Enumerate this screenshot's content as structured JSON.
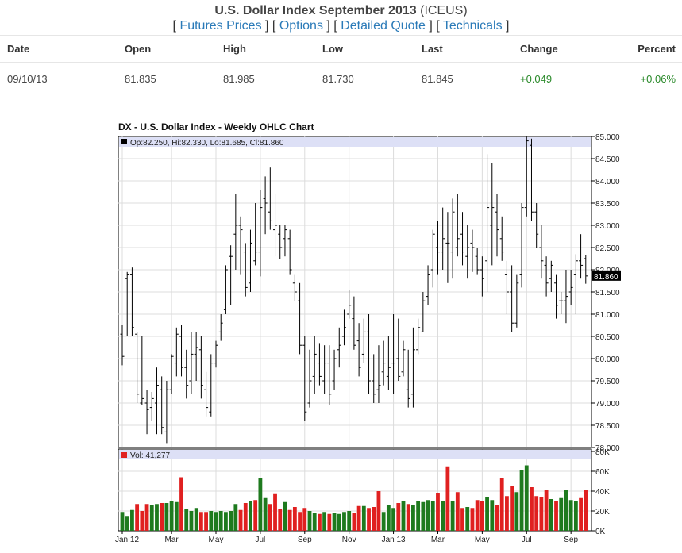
{
  "header": {
    "title": "U.S. Dollar Index September 2013",
    "symbol": "(ICEUS)",
    "links": [
      "Futures Prices",
      "Options",
      "Detailed Quote",
      "Technicals"
    ]
  },
  "quote": {
    "columns": [
      "Date",
      "Open",
      "High",
      "Low",
      "Last",
      "Change",
      "Percent"
    ],
    "row": {
      "date": "09/10/13",
      "open": "81.835",
      "high": "81.985",
      "low": "81.730",
      "last": "81.845",
      "change": "+0.049",
      "percent": "+0.06%"
    }
  },
  "colors": {
    "link": "#2a7ab8",
    "positive": "#2a8a2a",
    "vol_up": "#1e7a1e",
    "vol_down": "#e02020",
    "legend_band": "#dde0f6"
  },
  "chart_data": {
    "type": "ohlc",
    "title": "DX - U.S. Dollar Index - Weekly OHLC Chart",
    "legend": "Op:82.250, Hi:82.330, Lo:81.685, Cl:81.860",
    "last_label": "81.860",
    "ylim": [
      78.0,
      85.0
    ],
    "y_ticks": [
      "85.000",
      "84.500",
      "84.000",
      "83.500",
      "83.000",
      "82.500",
      "82.000",
      "81.500",
      "81.000",
      "80.500",
      "80.000",
      "79.500",
      "79.000",
      "78.500",
      "78.000"
    ],
    "x_ticks": [
      {
        "label": "Jan 12",
        "index": 0
      },
      {
        "label": "Mar",
        "index": 10
      },
      {
        "label": "May",
        "index": 19
      },
      {
        "label": "Jul",
        "index": 28
      },
      {
        "label": "Sep",
        "index": 37
      },
      {
        "label": "Nov",
        "index": 46
      },
      {
        "label": "Jan 13",
        "index": 55
      },
      {
        "label": "Mar",
        "index": 64
      },
      {
        "label": "May",
        "index": 73
      },
      {
        "label": "Jul",
        "index": 82
      },
      {
        "label": "Sep",
        "index": 91
      }
    ],
    "bars": [
      [
        80.55,
        80.75,
        79.85,
        80.05
      ],
      [
        81.8,
        81.95,
        80.5,
        81.9
      ],
      [
        81.9,
        82.05,
        80.5,
        80.7
      ],
      [
        80.55,
        80.6,
        79.0,
        79.2
      ],
      [
        79.0,
        80.5,
        78.95,
        79.1
      ],
      [
        79.0,
        79.3,
        78.3,
        78.85
      ],
      [
        78.9,
        79.25,
        78.6,
        79.1
      ],
      [
        79.0,
        79.8,
        78.3,
        79.4
      ],
      [
        79.3,
        79.6,
        78.3,
        78.45
      ],
      [
        78.35,
        79.5,
        78.1,
        79.3
      ],
      [
        79.3,
        80.1,
        79.2,
        80.05
      ],
      [
        79.9,
        80.7,
        79.6,
        80.55
      ],
      [
        80.5,
        80.75,
        79.6,
        79.8
      ],
      [
        79.8,
        80.2,
        79.1,
        79.4
      ],
      [
        79.5,
        80.6,
        79.2,
        80.1
      ],
      [
        80.1,
        80.6,
        79.5,
        80.25
      ],
      [
        80.2,
        80.5,
        79.1,
        79.4
      ],
      [
        79.3,
        79.7,
        78.7,
        78.9
      ],
      [
        78.8,
        80.1,
        78.7,
        79.9
      ],
      [
        79.9,
        80.4,
        79.8,
        80.3
      ],
      [
        80.6,
        81.0,
        80.4,
        80.8
      ],
      [
        81.1,
        82.1,
        81.0,
        82.0
      ],
      [
        82.3,
        82.55,
        81.2,
        82.3
      ],
      [
        82.8,
        83.7,
        82.0,
        83.0
      ],
      [
        83.0,
        83.2,
        81.9,
        82.9
      ],
      [
        82.4,
        82.6,
        81.4,
        81.6
      ],
      [
        81.7,
        82.9,
        81.5,
        82.6
      ],
      [
        82.2,
        83.5,
        82.1,
        82.4
      ],
      [
        82.4,
        83.8,
        81.85,
        83.4
      ],
      [
        83.6,
        84.1,
        82.8,
        83.5
      ],
      [
        83.3,
        84.3,
        82.9,
        83.1
      ],
      [
        82.9,
        83.7,
        82.3,
        83.0
      ],
      [
        82.8,
        83.0,
        82.25,
        82.5
      ],
      [
        82.7,
        83.0,
        82.3,
        82.9
      ],
      [
        82.7,
        82.9,
        81.9,
        82.0
      ],
      [
        81.7,
        81.9,
        81.3,
        81.5
      ],
      [
        81.3,
        81.7,
        80.1,
        80.3
      ],
      [
        80.3,
        80.5,
        78.6,
        78.8
      ],
      [
        79.0,
        80.2,
        78.9,
        79.5
      ],
      [
        79.6,
        80.5,
        79.2,
        80.1
      ],
      [
        79.9,
        80.35,
        79.4,
        79.6
      ],
      [
        79.5,
        80.3,
        79.2,
        79.9
      ],
      [
        79.9,
        80.3,
        78.95,
        79.2
      ],
      [
        79.5,
        80.2,
        79.3,
        80.0
      ],
      [
        80.2,
        80.7,
        79.8,
        80.3
      ],
      [
        80.5,
        81.1,
        80.3,
        80.7
      ],
      [
        81.0,
        81.55,
        80.9,
        81.2
      ],
      [
        80.9,
        81.4,
        80.2,
        80.3
      ],
      [
        80.4,
        80.8,
        79.6,
        79.8
      ],
      [
        80.1,
        80.9,
        79.9,
        80.6
      ],
      [
        80.6,
        81.0,
        79.2,
        79.5
      ],
      [
        79.5,
        80.1,
        79.0,
        79.2
      ],
      [
        79.3,
        80.3,
        79.0,
        79.4
      ],
      [
        79.7,
        80.4,
        79.4,
        79.9
      ],
      [
        79.6,
        80.5,
        79.3,
        79.8
      ],
      [
        79.9,
        81.0,
        79.2,
        79.9
      ],
      [
        80.0,
        80.9,
        79.5,
        79.6
      ],
      [
        79.7,
        80.4,
        79.6,
        80.2
      ],
      [
        79.3,
        80.2,
        78.9,
        79.1
      ],
      [
        79.2,
        80.7,
        78.9,
        80.2
      ],
      [
        80.2,
        80.9,
        80.1,
        80.7
      ],
      [
        80.6,
        81.5,
        80.6,
        81.3
      ],
      [
        81.4,
        82.1,
        81.2,
        81.9
      ],
      [
        82.0,
        82.9,
        81.6,
        82.8
      ],
      [
        82.5,
        83.1,
        81.9,
        82.4
      ],
      [
        82.4,
        83.4,
        82.0,
        82.7
      ],
      [
        82.6,
        83.3,
        81.7,
        82.6
      ],
      [
        82.4,
        83.6,
        81.8,
        83.3
      ],
      [
        82.5,
        83.7,
        82.3,
        82.7
      ],
      [
        82.8,
        83.3,
        82.1,
        82.4
      ],
      [
        82.3,
        83.0,
        81.8,
        82.5
      ],
      [
        82.6,
        82.9,
        81.95,
        82.5
      ],
      [
        82.3,
        82.5,
        81.9,
        82.0
      ],
      [
        82.0,
        82.3,
        81.4,
        81.8
      ],
      [
        82.2,
        84.6,
        81.5,
        83.4
      ],
      [
        83.0,
        84.4,
        82.1,
        83.4
      ],
      [
        83.3,
        83.7,
        82.3,
        82.9
      ],
      [
        82.7,
        83.2,
        82.2,
        82.4
      ],
      [
        81.9,
        82.2,
        81.0,
        81.5
      ],
      [
        81.5,
        82.1,
        80.6,
        80.8
      ],
      [
        80.8,
        81.9,
        80.7,
        81.7
      ],
      [
        81.9,
        83.5,
        81.6,
        83.4
      ],
      [
        83.4,
        85.0,
        83.2,
        84.9
      ],
      [
        84.8,
        84.95,
        83.1,
        83.3
      ],
      [
        83.3,
        83.5,
        82.5,
        82.8
      ],
      [
        82.5,
        83.0,
        81.8,
        82.2
      ],
      [
        82.1,
        82.3,
        81.4,
        81.7
      ],
      [
        81.8,
        82.2,
        81.5,
        82.1
      ],
      [
        81.7,
        81.9,
        80.9,
        81.2
      ],
      [
        81.3,
        81.5,
        81.0,
        81.3
      ],
      [
        81.3,
        82.0,
        80.8,
        81.4
      ],
      [
        81.5,
        82.0,
        81.2,
        81.6
      ],
      [
        81.9,
        82.35,
        81.0,
        82.2
      ],
      [
        82.2,
        82.8,
        81.8,
        82.1
      ],
      [
        82.25,
        82.33,
        81.685,
        81.86
      ]
    ],
    "volume": {
      "ylim": [
        0,
        80000
      ],
      "ticks": [
        "80K",
        "60K",
        "40K",
        "20K",
        "0K"
      ],
      "legend": "Vol: 41,277",
      "values": [
        19000,
        15000,
        21000,
        27000,
        20000,
        27000,
        26000,
        27000,
        28000,
        28000,
        30000,
        29000,
        54000,
        22000,
        20000,
        23000,
        19000,
        19000,
        20000,
        19000,
        20000,
        19000,
        20000,
        27000,
        21000,
        28000,
        30000,
        31000,
        53000,
        33000,
        27000,
        37000,
        22000,
        29000,
        21000,
        24000,
        19000,
        23000,
        20000,
        18000,
        17000,
        19000,
        17000,
        18000,
        17000,
        19000,
        20000,
        18000,
        25000,
        25000,
        23000,
        24000,
        40000,
        19000,
        26000,
        23000,
        28000,
        30000,
        27000,
        26000,
        30000,
        29000,
        31000,
        30000,
        38000,
        30000,
        65000,
        30000,
        39000,
        23000,
        24000,
        23000,
        31000,
        30000,
        34000,
        31000,
        26000,
        53000,
        35000,
        45000,
        39000,
        61000,
        66000,
        44000,
        35000,
        34000,
        41000,
        32000,
        30000,
        33000,
        41000,
        31000,
        30000,
        33000,
        41277
      ],
      "down": [
        0,
        0,
        0,
        1,
        1,
        1,
        0,
        0,
        1,
        0,
        0,
        0,
        1,
        0,
        0,
        0,
        1,
        1,
        0,
        0,
        0,
        0,
        0,
        0,
        1,
        1,
        0,
        1,
        0,
        0,
        1,
        1,
        1,
        0,
        1,
        1,
        1,
        1,
        0,
        0,
        1,
        0,
        1,
        0,
        0,
        0,
        0,
        1,
        1,
        0,
        1,
        1,
        1,
        0,
        0,
        0,
        1,
        0,
        1,
        0,
        0,
        0,
        0,
        0,
        1,
        0,
        1,
        0,
        1,
        1,
        0,
        1,
        1,
        1,
        0,
        0,
        1,
        1,
        1,
        1,
        0,
        0,
        0,
        1,
        1,
        1,
        1,
        0,
        1,
        0,
        0,
        0,
        0,
        1,
        1
      ]
    }
  }
}
